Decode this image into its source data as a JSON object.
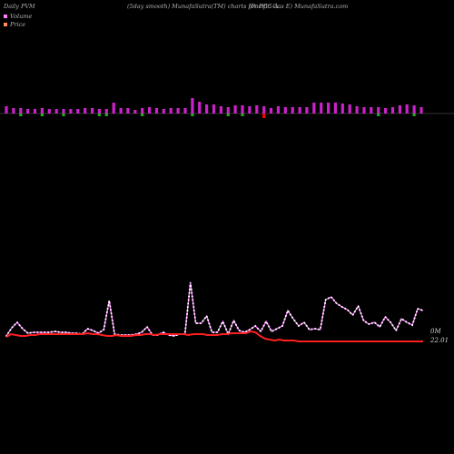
{
  "header": {
    "left": "Daily PVM",
    "center": "(5day smooth) MunafaSutra(TM) charts for PCG-A",
    "right": "(Pacific Gas E) MunafaSutra.com"
  },
  "legend": [
    {
      "name": "Volume",
      "color": "#ff80ff"
    },
    {
      "name": "Price",
      "color": "#ff8c5a"
    }
  ],
  "chart_data": {
    "type": "bar+line",
    "volume_bars": {
      "values": [
        8,
        6,
        6,
        5,
        5,
        6,
        5,
        5,
        5,
        5,
        5,
        6,
        6,
        5,
        5,
        12,
        6,
        6,
        4,
        6,
        7,
        6,
        5,
        6,
        6,
        6,
        17,
        13,
        10,
        10,
        8,
        7,
        9,
        9,
        8,
        9,
        8,
        6,
        8,
        7,
        7,
        7,
        7,
        12,
        12,
        12,
        12,
        11,
        10,
        8,
        7,
        7,
        7,
        6,
        7,
        9,
        10,
        9,
        7
      ],
      "down": [
        2,
        5,
        8,
        13,
        14,
        19,
        26,
        31,
        33,
        36,
        52,
        57
      ],
      "colors": {
        "up": "#cc22cc",
        "down": "#22aa22",
        "down_alt": "#ff0000"
      }
    },
    "volume_line": {
      "color": "#ff66ff",
      "values": [
        5,
        14,
        20,
        13,
        8,
        9,
        9,
        9,
        9,
        10,
        9,
        9,
        8,
        8,
        7,
        13,
        11,
        8,
        12,
        44,
        7,
        6,
        6,
        6,
        7,
        9,
        15,
        6,
        6,
        9,
        6,
        5,
        7,
        7,
        64,
        19,
        19,
        27,
        9,
        9,
        21,
        7,
        22,
        11,
        9,
        12,
        16,
        10,
        21,
        10,
        13,
        16,
        33,
        24,
        16,
        20,
        12,
        13,
        12,
        45,
        48,
        41,
        37,
        34,
        28,
        38,
        22,
        18,
        20,
        15,
        26,
        20,
        11,
        24,
        20,
        17,
        35,
        33
      ]
    },
    "price_line": {
      "color": "#ff2020",
      "values": [
        6,
        9,
        8,
        7,
        7,
        8,
        8,
        9,
        9,
        9,
        9,
        9,
        9,
        9,
        9,
        9,
        9,
        10,
        9,
        9,
        8,
        7,
        7,
        8,
        7,
        7,
        7,
        8,
        8,
        9,
        9,
        8,
        9,
        9,
        9,
        9,
        9,
        9,
        8,
        9,
        9,
        9,
        8,
        8,
        8,
        9,
        9,
        10,
        10,
        10,
        10,
        12,
        11,
        7,
        4,
        3,
        2,
        3,
        2,
        2,
        2,
        1,
        1,
        1,
        1,
        1,
        1,
        1,
        1,
        1,
        1,
        1,
        1,
        1,
        1,
        1,
        1,
        1,
        1,
        1,
        1,
        1,
        1,
        1,
        1,
        1,
        1,
        1
      ]
    },
    "labels": {
      "volume_last": "0M",
      "price_last": "22.01"
    }
  }
}
